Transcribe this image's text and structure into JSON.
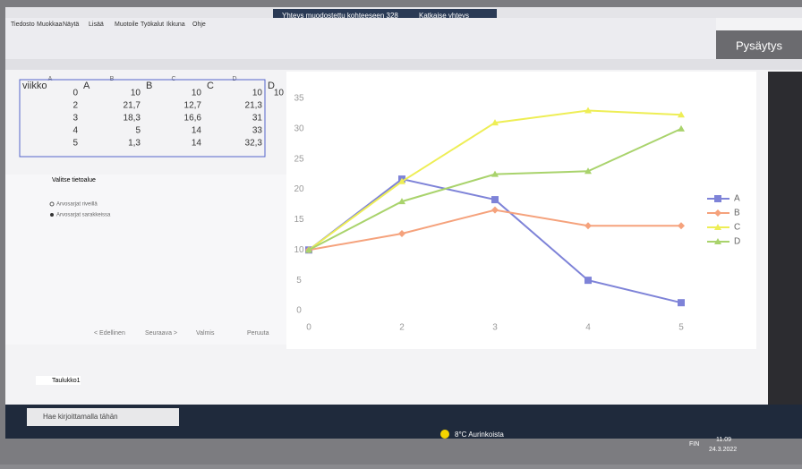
{
  "window": {
    "banner": "Yhteys muodostettu kohteeseen 328",
    "disconnect": "Katkaise yhteys",
    "stop_button": "Pysäytys",
    "menu": [
      "Tiedosto",
      "Muokkaa",
      "Näytä",
      "Lisää",
      "Muotoile",
      "Työkalut",
      "Ikkuna",
      "Ohje"
    ]
  },
  "sheet": {
    "columns": [
      "A",
      "B",
      "C",
      "D"
    ],
    "rows": [
      [
        "viikko",
        "A",
        "B",
        "C",
        "D"
      ],
      [
        "0",
        "10",
        "10",
        "10",
        "10"
      ],
      [
        "2",
        "21,7",
        "12,7",
        "21,3"
      ],
      [
        "3",
        "18,3",
        "16,6",
        "31"
      ],
      [
        "4",
        "5",
        "14",
        "33"
      ],
      [
        "5",
        "1,3",
        "14",
        "32,3"
      ]
    ],
    "tab": "Taulukko1"
  },
  "dialog": {
    "title": "Valitse tietoalue",
    "options": [
      "Arvosarjat riveillä",
      "Arvosarjat sarakkeissa"
    ],
    "buttons": [
      "< Edellinen",
      "Seuraava >",
      "Valmis",
      "Peruuta"
    ]
  },
  "chart_data": {
    "type": "line",
    "categories": [
      "0",
      "2",
      "3",
      "4",
      "5"
    ],
    "series": [
      {
        "name": "A",
        "color": "#7e83d8",
        "marker": "square",
        "values": [
          10,
          21.7,
          18.3,
          5,
          1.3
        ]
      },
      {
        "name": "B",
        "color": "#f5a27c",
        "marker": "diamond",
        "values": [
          10,
          12.7,
          16.6,
          14,
          14
        ]
      },
      {
        "name": "C",
        "color": "#eeee55",
        "marker": "triangle",
        "values": [
          10,
          21.3,
          31,
          33,
          32.3
        ]
      },
      {
        "name": "D",
        "color": "#a9d36c",
        "marker": "triangle",
        "values": [
          10,
          18,
          22.5,
          23,
          30
        ]
      }
    ],
    "ylim": [
      0,
      35
    ],
    "yticks": [
      0,
      5,
      10,
      15,
      20,
      25,
      30,
      35
    ],
    "legend": "right"
  },
  "taskbar": {
    "search": "Hae kirjoittamalla tähän",
    "weather": "8°C Aurinkoista",
    "lang": "FIN",
    "time": "11.09",
    "date": "24.3.2022"
  }
}
